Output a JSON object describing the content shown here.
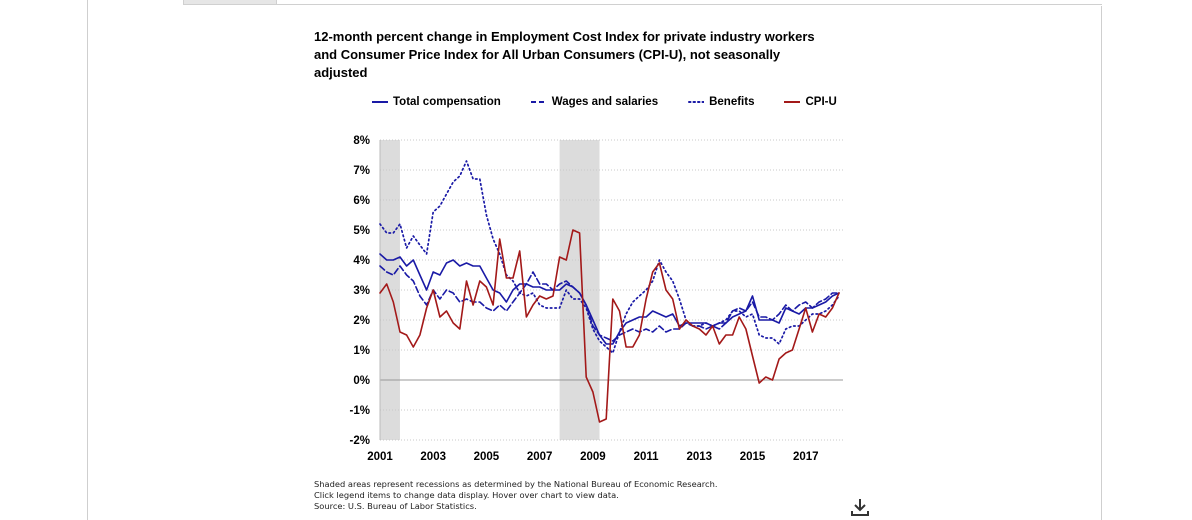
{
  "chart_data": {
    "type": "line",
    "title": "12-month percent change in Employment Cost Index for private industry workers and Consumer Price Index for All Urban Consumers (CPI-U), not seasonally adjusted",
    "y_ticks": [
      "8%",
      "7%",
      "6%",
      "5%",
      "4%",
      "3%",
      "2%",
      "1%",
      "0%",
      "-1%",
      "-2%"
    ],
    "x_ticks": [
      "2001",
      "2003",
      "2005",
      "2007",
      "2009",
      "2011",
      "2013",
      "2015",
      "2017"
    ],
    "ylim": [
      -2,
      8
    ],
    "xlim": [
      2001.0,
      2018.4
    ],
    "grid": true,
    "legend_placement": "top",
    "recessions": [
      [
        2001.0,
        2001.75
      ],
      [
        2007.75,
        2009.25
      ]
    ],
    "x": [
      2001.0,
      2001.25,
      2001.5,
      2001.75,
      2002.0,
      2002.25,
      2002.5,
      2002.75,
      2003.0,
      2003.25,
      2003.5,
      2003.75,
      2004.0,
      2004.25,
      2004.5,
      2004.75,
      2005.0,
      2005.25,
      2005.5,
      2005.75,
      2006.0,
      2006.25,
      2006.5,
      2006.75,
      2007.0,
      2007.25,
      2007.5,
      2007.75,
      2008.0,
      2008.25,
      2008.5,
      2008.75,
      2009.0,
      2009.25,
      2009.5,
      2009.75,
      2010.0,
      2010.25,
      2010.5,
      2010.75,
      2011.0,
      2011.25,
      2011.5,
      2011.75,
      2012.0,
      2012.25,
      2012.5,
      2012.75,
      2013.0,
      2013.25,
      2013.5,
      2013.75,
      2014.0,
      2014.25,
      2014.5,
      2014.75,
      2015.0,
      2015.25,
      2015.5,
      2015.75,
      2016.0,
      2016.25,
      2016.5,
      2016.75,
      2017.0,
      2017.25,
      2017.5,
      2017.75,
      2018.0,
      2018.25
    ],
    "series": [
      {
        "name": "Total compensation",
        "color": "#1a1aa6",
        "dash": "solid",
        "values": [
          4.2,
          4.0,
          4.0,
          4.1,
          3.8,
          4.0,
          3.5,
          3.0,
          3.6,
          3.5,
          3.9,
          4.0,
          3.8,
          3.9,
          3.8,
          3.8,
          3.4,
          3.0,
          2.9,
          2.6,
          3.0,
          3.2,
          3.2,
          3.1,
          3.1,
          3.0,
          3.0,
          3.0,
          3.2,
          3.1,
          2.9,
          2.5,
          2.0,
          1.5,
          1.2,
          1.2,
          1.6,
          1.9,
          2.0,
          2.1,
          2.1,
          2.3,
          2.2,
          2.1,
          2.2,
          1.8,
          1.9,
          1.9,
          1.9,
          1.9,
          1.8,
          1.9,
          1.9,
          2.1,
          2.2,
          2.3,
          2.8,
          2.0,
          2.0,
          2.0,
          1.9,
          2.4,
          2.3,
          2.2,
          2.4,
          2.4,
          2.5,
          2.6,
          2.8,
          2.9
        ]
      },
      {
        "name": "Wages and salaries",
        "color": "#1a1aa6",
        "dash": "dash",
        "values": [
          3.8,
          3.6,
          3.5,
          3.8,
          3.5,
          3.3,
          2.8,
          2.5,
          3.0,
          2.7,
          3.0,
          2.9,
          2.6,
          2.7,
          2.6,
          2.6,
          2.4,
          2.3,
          2.5,
          2.3,
          2.6,
          2.9,
          3.2,
          3.6,
          3.2,
          3.2,
          3.0,
          3.2,
          3.3,
          3.1,
          2.9,
          2.5,
          1.8,
          1.5,
          1.4,
          1.3,
          1.5,
          1.6,
          1.7,
          1.6,
          1.7,
          1.6,
          1.8,
          1.6,
          1.7,
          1.7,
          1.9,
          1.8,
          1.8,
          1.7,
          1.8,
          1.7,
          1.9,
          2.3,
          2.4,
          2.3,
          2.6,
          2.1,
          2.1,
          2.0,
          2.2,
          2.5,
          2.3,
          2.5,
          2.6,
          2.4,
          2.6,
          2.7,
          2.9,
          2.9
        ]
      },
      {
        "name": "Benefits",
        "color": "#1a1aa6",
        "dash": "dot",
        "values": [
          5.2,
          4.9,
          4.9,
          5.2,
          4.4,
          4.8,
          4.5,
          4.2,
          5.6,
          5.8,
          6.2,
          6.6,
          6.8,
          7.3,
          6.7,
          6.7,
          5.5,
          4.7,
          4.2,
          3.5,
          3.3,
          2.9,
          2.8,
          2.9,
          2.5,
          2.4,
          2.4,
          2.4,
          3.0,
          2.7,
          2.7,
          2.4,
          1.7,
          1.3,
          1.1,
          0.9,
          1.6,
          2.2,
          2.6,
          2.8,
          3.0,
          3.3,
          4.0,
          3.6,
          3.3,
          2.7,
          2.0,
          1.8,
          1.8,
          1.9,
          1.8,
          1.9,
          2.0,
          2.3,
          2.3,
          2.1,
          2.2,
          1.5,
          1.4,
          1.4,
          1.2,
          1.7,
          1.8,
          1.8,
          2.0,
          2.2,
          2.2,
          2.3,
          2.5,
          2.8
        ]
      },
      {
        "name": "CPI-U",
        "color": "#a31919",
        "dash": "solid",
        "values": [
          2.9,
          3.2,
          2.6,
          1.6,
          1.5,
          1.1,
          1.5,
          2.4,
          3.0,
          2.1,
          2.3,
          1.9,
          1.7,
          3.3,
          2.5,
          3.3,
          3.1,
          2.5,
          4.7,
          3.4,
          3.4,
          4.3,
          2.1,
          2.5,
          2.8,
          2.7,
          2.8,
          4.1,
          4.0,
          5.0,
          4.9,
          0.1,
          -0.4,
          -1.4,
          -1.3,
          2.7,
          2.3,
          1.1,
          1.1,
          1.5,
          2.7,
          3.6,
          3.9,
          3.0,
          2.7,
          1.7,
          2.0,
          1.8,
          1.7,
          1.5,
          1.8,
          1.2,
          1.5,
          1.5,
          2.1,
          1.7,
          0.8,
          -0.1,
          0.1,
          0.0,
          0.7,
          0.9,
          1.0,
          1.7,
          2.4,
          1.6,
          2.2,
          2.1,
          2.4,
          2.9
        ]
      }
    ]
  },
  "notes": [
    "Shaded areas represent recessions as determined by the National Bureau of Economic Research.",
    "Click legend items to change data display. Hover over chart to view data.",
    "Source: U.S. Bureau of Labor Statistics."
  ],
  "download_icon": "download-icon"
}
